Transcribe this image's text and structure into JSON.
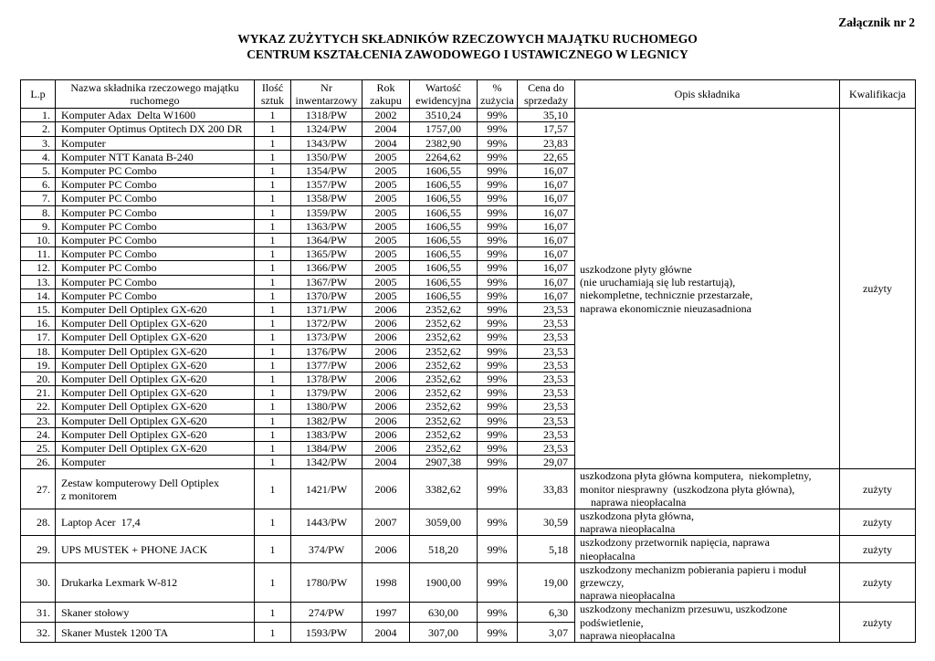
{
  "attachment_label": "Załącznik nr 2",
  "title_line1": "WYKAZ ZUŻYTYCH SKŁADNIKÓW RZECZOWYCH MAJĄTKU RUCHOMEGO",
  "title_line2": "CENTRUM KSZTAŁCENIA ZAWODOWEGO I USTAWICZNEGO W LEGNICY",
  "table": {
    "headers": [
      "L.p",
      "Nazwa składnika rzeczowego majątku\nruchomego",
      "Ilość\nsztuk",
      "Nr\ninwentarzowy",
      "Rok\nzakupu",
      "Wartość\newidencyjna",
      "%\nzużycia",
      "Cena do\nsprzedaży",
      "Opis składnika",
      "Kwalifikacja"
    ],
    "rows": [
      {
        "lp": "1.",
        "name": "Komputer Adax  Delta W1600",
        "qty": "1",
        "inv": "1318/PW",
        "year": "2002",
        "value": "3510,24",
        "pct": "99%",
        "price": "35,10",
        "opis": {
          "text": "uszkodzone płyty główne\n(nie uruchamiają się lub restartują),\nniekompletne, technicznie przestarzałe,\nnaprawa ekonomicznie nieuzasadniona",
          "rowspan": 26
        },
        "kwal": {
          "text": "zużyty",
          "rowspan": 26
        }
      },
      {
        "lp": "2.",
        "name": "Komputer Optimus Optitech DX 200 DR",
        "qty": "1",
        "inv": "1324/PW",
        "year": "2004",
        "value": "1757,00",
        "pct": "99%",
        "price": "17,57"
      },
      {
        "lp": "3.",
        "name": "Komputer",
        "qty": "1",
        "inv": "1343/PW",
        "year": "2004",
        "value": "2382,90",
        "pct": "99%",
        "price": "23,83"
      },
      {
        "lp": "4.",
        "name": "Komputer NTT Kanata B-240",
        "qty": "1",
        "inv": "1350/PW",
        "year": "2005",
        "value": "2264,62",
        "pct": "99%",
        "price": "22,65"
      },
      {
        "lp": "5.",
        "name": "Komputer PC Combo",
        "qty": "1",
        "inv": "1354/PW",
        "year": "2005",
        "value": "1606,55",
        "pct": "99%",
        "price": "16,07"
      },
      {
        "lp": "6.",
        "name": "Komputer PC Combo",
        "qty": "1",
        "inv": "1357/PW",
        "year": "2005",
        "value": "1606,55",
        "pct": "99%",
        "price": "16,07"
      },
      {
        "lp": "7.",
        "name": "Komputer PC Combo",
        "qty": "1",
        "inv": "1358/PW",
        "year": "2005",
        "value": "1606,55",
        "pct": "99%",
        "price": "16,07"
      },
      {
        "lp": "8.",
        "name": "Komputer PC Combo",
        "qty": "1",
        "inv": "1359/PW",
        "year": "2005",
        "value": "1606,55",
        "pct": "99%",
        "price": "16,07"
      },
      {
        "lp": "9.",
        "name": "Komputer PC Combo",
        "qty": "1",
        "inv": "1363/PW",
        "year": "2005",
        "value": "1606,55",
        "pct": "99%",
        "price": "16,07"
      },
      {
        "lp": "10.",
        "name": "Komputer PC Combo",
        "qty": "1",
        "inv": "1364/PW",
        "year": "2005",
        "value": "1606,55",
        "pct": "99%",
        "price": "16,07"
      },
      {
        "lp": "11.",
        "name": "Komputer PC Combo",
        "qty": "1",
        "inv": "1365/PW",
        "year": "2005",
        "value": "1606,55",
        "pct": "99%",
        "price": "16,07"
      },
      {
        "lp": "12.",
        "name": "Komputer PC Combo",
        "qty": "1",
        "inv": "1366/PW",
        "year": "2005",
        "value": "1606,55",
        "pct": "99%",
        "price": "16,07"
      },
      {
        "lp": "13.",
        "name": "Komputer PC Combo",
        "qty": "1",
        "inv": "1367/PW",
        "year": "2005",
        "value": "1606,55",
        "pct": "99%",
        "price": "16,07"
      },
      {
        "lp": "14.",
        "name": "Komputer PC Combo",
        "qty": "1",
        "inv": "1370/PW",
        "year": "2005",
        "value": "1606,55",
        "pct": "99%",
        "price": "16,07"
      },
      {
        "lp": "15.",
        "name": "Komputer Dell Optiplex GX-620",
        "qty": "1",
        "inv": "1371/PW",
        "year": "2006",
        "value": "2352,62",
        "pct": "99%",
        "price": "23,53"
      },
      {
        "lp": "16.",
        "name": "Komputer Dell Optiplex GX-620",
        "qty": "1",
        "inv": "1372/PW",
        "year": "2006",
        "value": "2352,62",
        "pct": "99%",
        "price": "23,53"
      },
      {
        "lp": "17.",
        "name": "Komputer Dell Optiplex GX-620",
        "qty": "1",
        "inv": "1373/PW",
        "year": "2006",
        "value": "2352,62",
        "pct": "99%",
        "price": "23,53"
      },
      {
        "lp": "18.",
        "name": "Komputer Dell Optiplex GX-620",
        "qty": "1",
        "inv": "1376/PW",
        "year": "2006",
        "value": "2352,62",
        "pct": "99%",
        "price": "23,53"
      },
      {
        "lp": "19.",
        "name": "Komputer Dell Optiplex GX-620",
        "qty": "1",
        "inv": "1377/PW",
        "year": "2006",
        "value": "2352,62",
        "pct": "99%",
        "price": "23,53"
      },
      {
        "lp": "20.",
        "name": "Komputer Dell Optiplex GX-620",
        "qty": "1",
        "inv": "1378/PW",
        "year": "2006",
        "value": "2352,62",
        "pct": "99%",
        "price": "23,53"
      },
      {
        "lp": "21.",
        "name": "Komputer Dell Optiplex GX-620",
        "qty": "1",
        "inv": "1379/PW",
        "year": "2006",
        "value": "2352,62",
        "pct": "99%",
        "price": "23,53"
      },
      {
        "lp": "22.",
        "name": "Komputer Dell Optiplex GX-620",
        "qty": "1",
        "inv": "1380/PW",
        "year": "2006",
        "value": "2352,62",
        "pct": "99%",
        "price": "23,53"
      },
      {
        "lp": "23.",
        "name": "Komputer Dell Optiplex GX-620",
        "qty": "1",
        "inv": "1382/PW",
        "year": "2006",
        "value": "2352,62",
        "pct": "99%",
        "price": "23,53"
      },
      {
        "lp": "24.",
        "name": "Komputer Dell Optiplex GX-620",
        "qty": "1",
        "inv": "1383/PW",
        "year": "2006",
        "value": "2352,62",
        "pct": "99%",
        "price": "23,53"
      },
      {
        "lp": "25.",
        "name": "Komputer Dell Optiplex GX-620",
        "qty": "1",
        "inv": "1384/PW",
        "year": "2006",
        "value": "2352,62",
        "pct": "99%",
        "price": "23,53"
      },
      {
        "lp": "26.",
        "name": "Komputer",
        "qty": "1",
        "inv": "1342/PW",
        "year": "2004",
        "value": "2907,38",
        "pct": "99%",
        "price": "29,07"
      },
      {
        "lp": "27.",
        "name": "Zestaw komputerowy Dell Optiplex\nz monitorem",
        "qty": "1",
        "inv": "1421/PW",
        "year": "2006",
        "value": "3382,62",
        "pct": "99%",
        "price": "33,83",
        "opis": {
          "text": "uszkodzona płyta główna komputera,  niekompletny,\nmonitor niesprawny  (uszkodzona płyta główna),\n    naprawa nieopłacalna",
          "rowspan": 1
        },
        "kwal": {
          "text": "zużyty",
          "rowspan": 1
        }
      },
      {
        "lp": "28.",
        "name": "Laptop Acer  17,4",
        "qty": "1",
        "inv": "1443/PW",
        "year": "2007",
        "value": "3059,00",
        "pct": "99%",
        "price": "30,59",
        "opis": {
          "text": "uszkodzona płyta główna,\nnaprawa nieopłacalna",
          "rowspan": 1
        },
        "kwal": {
          "text": "zużyty",
          "rowspan": 1
        }
      },
      {
        "lp": "29.",
        "name": "UPS MUSTEK + PHONE JACK",
        "qty": "1",
        "inv": "374/PW",
        "year": "2006",
        "value": "518,20",
        "pct": "99%",
        "price": "5,18",
        "opis": {
          "text": "uszkodzony przetwornik napięcia, naprawa\nnieopłacalna",
          "rowspan": 1
        },
        "kwal": {
          "text": "zużyty",
          "rowspan": 1
        }
      },
      {
        "lp": "30.",
        "name": "Drukarka Lexmark W-812",
        "qty": "1",
        "inv": "1780/PW",
        "year": "1998",
        "value": "1900,00",
        "pct": "99%",
        "price": "19,00",
        "opis": {
          "text": "uszkodzony mechanizm pobierania papieru i moduł\ngrzewczy,\nnaprawa nieopłacalna",
          "rowspan": 1
        },
        "kwal": {
          "text": "zużyty",
          "rowspan": 1
        }
      },
      {
        "lp": "31.",
        "name": "Skaner stołowy",
        "qty": "1",
        "inv": "274/PW",
        "year": "1997",
        "value": "630,00",
        "pct": "99%",
        "price": "6,30",
        "opis": {
          "text": "uszkodzony mechanizm przesuwu, uszkodzone\npodświetlenie,\nnaprawa nieopłacalna",
          "rowspan": 2
        },
        "kwal": {
          "text": "zużyty",
          "rowspan": 2
        }
      },
      {
        "lp": "32.",
        "name": "Skaner Mustek 1200 TA",
        "qty": "1",
        "inv": "1593/PW",
        "year": "2004",
        "value": "307,00",
        "pct": "99%",
        "price": "3,07"
      }
    ]
  }
}
